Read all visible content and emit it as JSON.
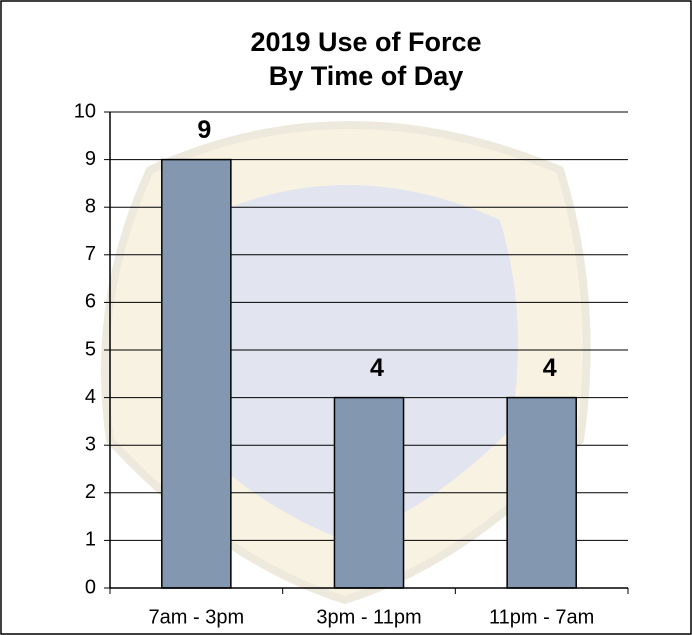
{
  "chart_data": {
    "type": "bar",
    "title": [
      "2019 Use of Force",
      "By Time of Day"
    ],
    "categories": [
      "7am - 3pm",
      "3pm - 11pm",
      "11pm - 7am"
    ],
    "values": [
      9,
      4,
      4
    ],
    "color": "#8497b0",
    "ylim": [
      0,
      10
    ],
    "yticks": [
      0,
      1,
      2,
      3,
      4,
      5,
      6,
      7,
      8,
      9,
      10
    ],
    "grid": true
  }
}
